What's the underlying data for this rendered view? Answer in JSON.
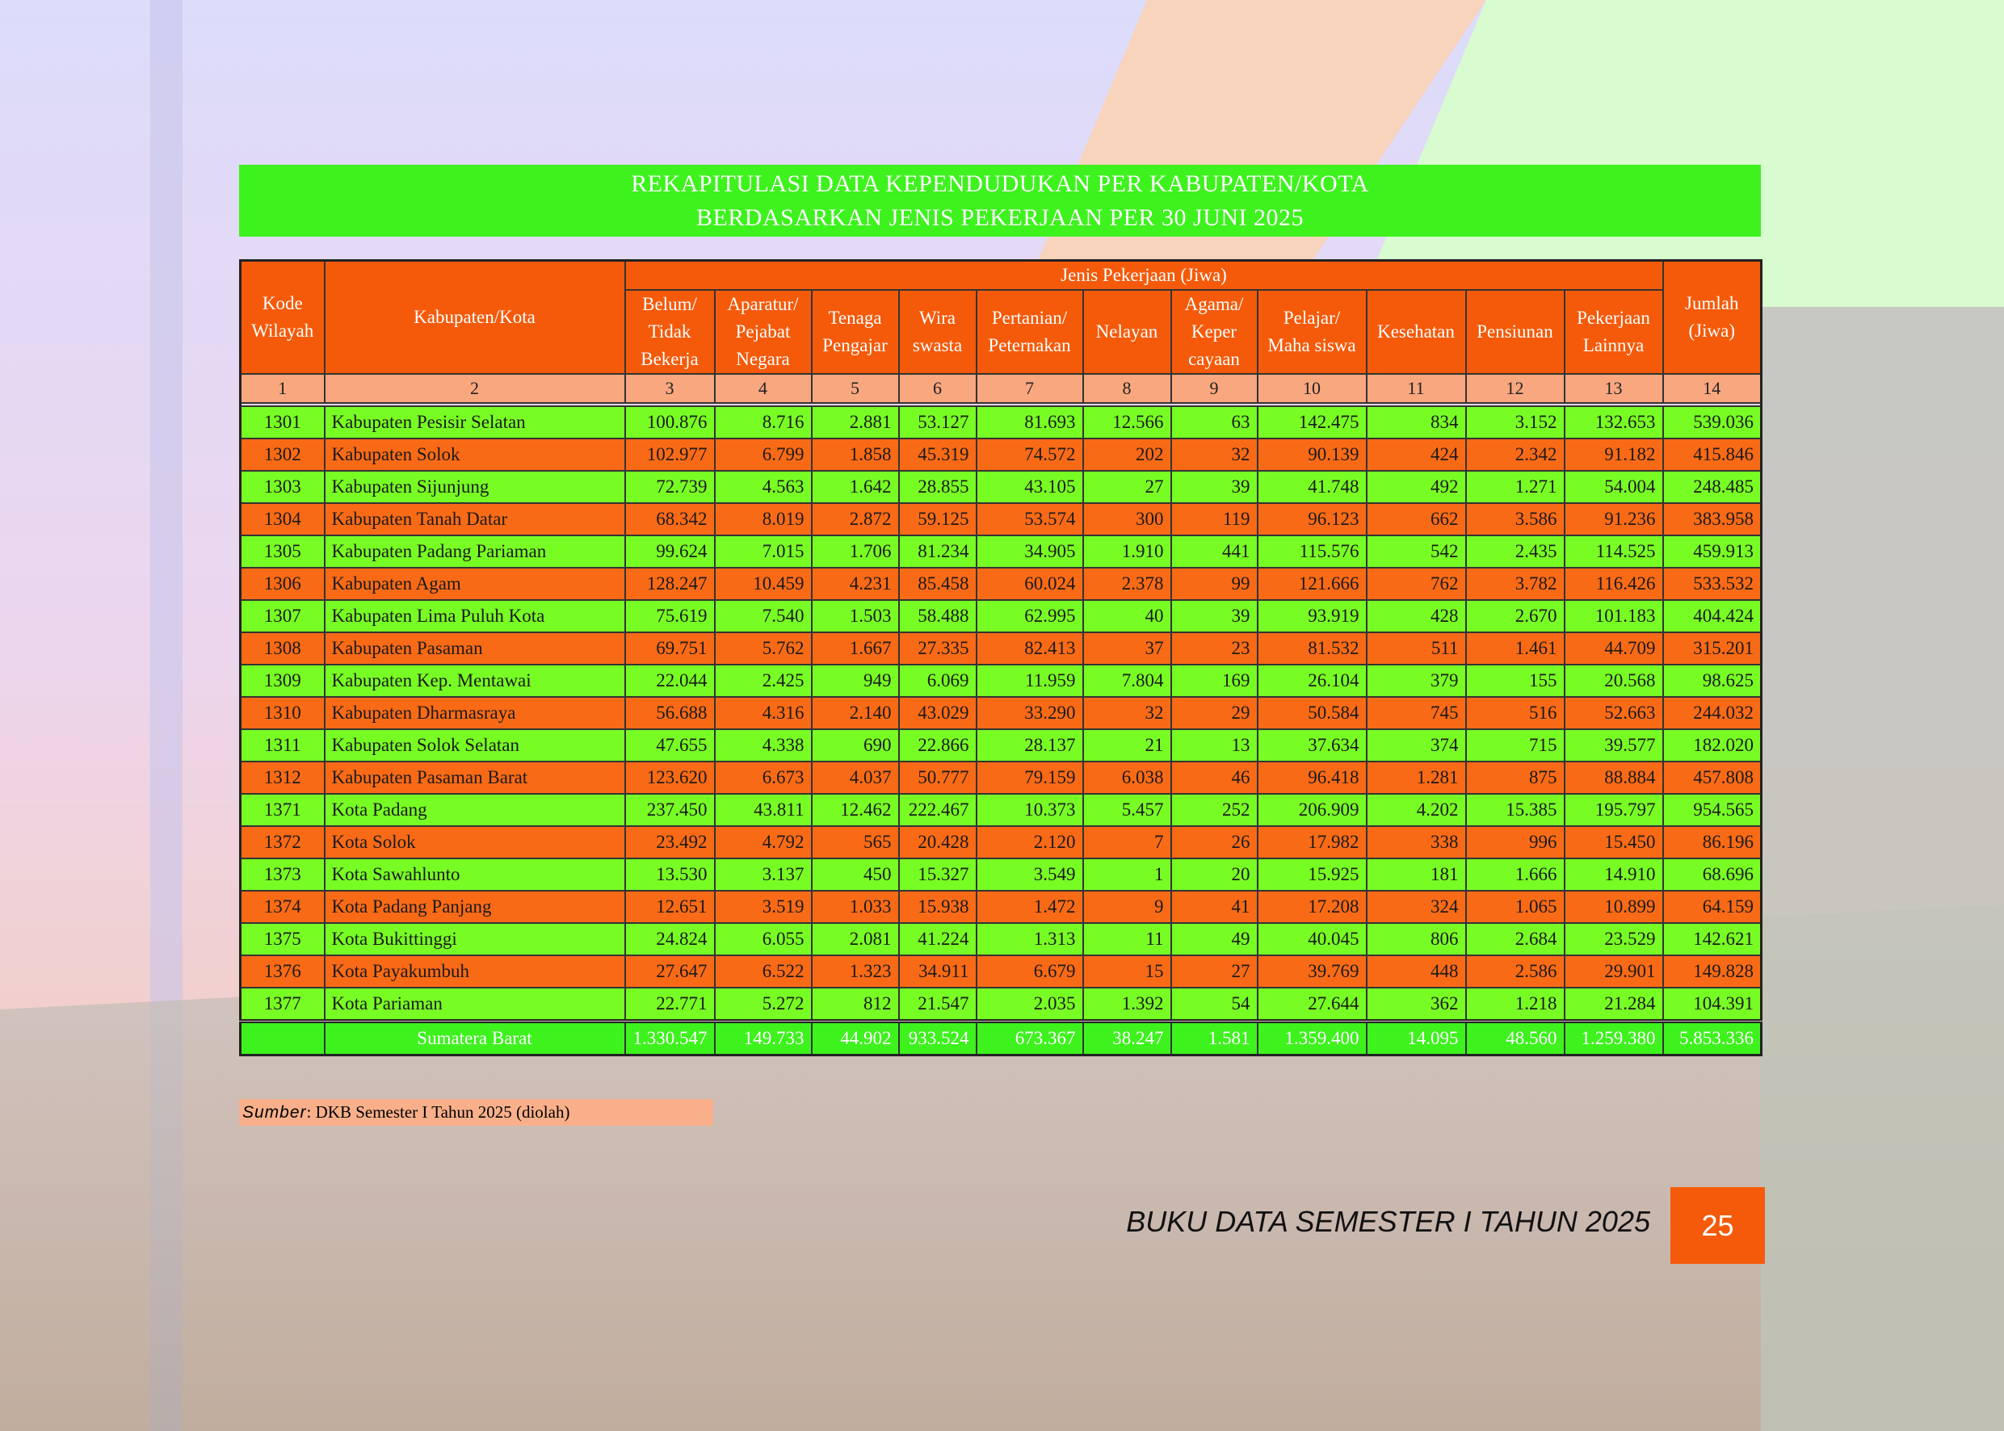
{
  "header": {
    "title": [
      "REKAPITULASI DATA KEPENDUDUKAN  PER KABUPATEN/KOTA",
      "BERDASARKAN JENIS PEKERJAAN PER 30 JUNI 2025"
    ]
  },
  "table": {
    "group_header": "Jenis Pekerjaan (Jiwa)",
    "columns": [
      [
        "Kode",
        "Wilayah"
      ],
      [
        "Kabupaten/Kota"
      ],
      [
        "Belum/",
        "Tidak",
        "Bekerja"
      ],
      [
        "Aparatur/",
        "Pejabat",
        "Negara"
      ],
      [
        "Tenaga",
        "Pengajar"
      ],
      [
        "Wira",
        "swasta"
      ],
      [
        "Pertanian/",
        "Peternakan"
      ],
      [
        "Nelayan"
      ],
      [
        "Agama/",
        "Keper",
        "cayaan"
      ],
      [
        "Pelajar/",
        "Maha siswa"
      ],
      [
        "Kesehatan"
      ],
      [
        "Pensiunan"
      ],
      [
        "Pekerjaan",
        "Lainnya"
      ],
      [
        "Jumlah",
        "(Jiwa)"
      ]
    ],
    "column_numbers": [
      "1",
      "2",
      "3",
      "4",
      "5",
      "6",
      "7",
      "8",
      "9",
      "10",
      "11",
      "12",
      "13",
      "14"
    ],
    "rows": [
      [
        "1301",
        "Kabupaten Pesisir Selatan",
        "100.876",
        "8.716",
        "2.881",
        "53.127",
        "81.693",
        "12.566",
        "63",
        "142.475",
        "834",
        "3.152",
        "132.653",
        "539.036"
      ],
      [
        "1302",
        "Kabupaten Solok",
        "102.977",
        "6.799",
        "1.858",
        "45.319",
        "74.572",
        "202",
        "32",
        "90.139",
        "424",
        "2.342",
        "91.182",
        "415.846"
      ],
      [
        "1303",
        "Kabupaten Sijunjung",
        "72.739",
        "4.563",
        "1.642",
        "28.855",
        "43.105",
        "27",
        "39",
        "41.748",
        "492",
        "1.271",
        "54.004",
        "248.485"
      ],
      [
        "1304",
        "Kabupaten Tanah Datar",
        "68.342",
        "8.019",
        "2.872",
        "59.125",
        "53.574",
        "300",
        "119",
        "96.123",
        "662",
        "3.586",
        "91.236",
        "383.958"
      ],
      [
        "1305",
        "Kabupaten Padang Pariaman",
        "99.624",
        "7.015",
        "1.706",
        "81.234",
        "34.905",
        "1.910",
        "441",
        "115.576",
        "542",
        "2.435",
        "114.525",
        "459.913"
      ],
      [
        "1306",
        "Kabupaten Agam",
        "128.247",
        "10.459",
        "4.231",
        "85.458",
        "60.024",
        "2.378",
        "99",
        "121.666",
        "762",
        "3.782",
        "116.426",
        "533.532"
      ],
      [
        "1307",
        "Kabupaten Lima Puluh Kota",
        "75.619",
        "7.540",
        "1.503",
        "58.488",
        "62.995",
        "40",
        "39",
        "93.919",
        "428",
        "2.670",
        "101.183",
        "404.424"
      ],
      [
        "1308",
        "Kabupaten Pasaman",
        "69.751",
        "5.762",
        "1.667",
        "27.335",
        "82.413",
        "37",
        "23",
        "81.532",
        "511",
        "1.461",
        "44.709",
        "315.201"
      ],
      [
        "1309",
        "Kabupaten Kep. Mentawai",
        "22.044",
        "2.425",
        "949",
        "6.069",
        "11.959",
        "7.804",
        "169",
        "26.104",
        "379",
        "155",
        "20.568",
        "98.625"
      ],
      [
        "1310",
        "Kabupaten Dharmasraya",
        "56.688",
        "4.316",
        "2.140",
        "43.029",
        "33.290",
        "32",
        "29",
        "50.584",
        "745",
        "516",
        "52.663",
        "244.032"
      ],
      [
        "1311",
        "Kabupaten Solok Selatan",
        "47.655",
        "4.338",
        "690",
        "22.866",
        "28.137",
        "21",
        "13",
        "37.634",
        "374",
        "715",
        "39.577",
        "182.020"
      ],
      [
        "1312",
        "Kabupaten Pasaman Barat",
        "123.620",
        "6.673",
        "4.037",
        "50.777",
        "79.159",
        "6.038",
        "46",
        "96.418",
        "1.281",
        "875",
        "88.884",
        "457.808"
      ],
      [
        "1371",
        "Kota Padang",
        "237.450",
        "43.811",
        "12.462",
        "222.467",
        "10.373",
        "5.457",
        "252",
        "206.909",
        "4.202",
        "15.385",
        "195.797",
        "954.565"
      ],
      [
        "1372",
        "Kota Solok",
        "23.492",
        "4.792",
        "565",
        "20.428",
        "2.120",
        "7",
        "26",
        "17.982",
        "338",
        "996",
        "15.450",
        "86.196"
      ],
      [
        "1373",
        "Kota Sawahlunto",
        "13.530",
        "3.137",
        "450",
        "15.327",
        "3.549",
        "1",
        "20",
        "15.925",
        "181",
        "1.666",
        "14.910",
        "68.696"
      ],
      [
        "1374",
        "Kota Padang Panjang",
        "12.651",
        "3.519",
        "1.033",
        "15.938",
        "1.472",
        "9",
        "41",
        "17.208",
        "324",
        "1.065",
        "10.899",
        "64.159"
      ],
      [
        "1375",
        "Kota Bukittinggi",
        "24.824",
        "6.055",
        "2.081",
        "41.224",
        "1.313",
        "11",
        "49",
        "40.045",
        "806",
        "2.684",
        "23.529",
        "142.621"
      ],
      [
        "1376",
        "Kota Payakumbuh",
        "27.647",
        "6.522",
        "1.323",
        "34.911",
        "6.679",
        "15",
        "27",
        "39.769",
        "448",
        "2.586",
        "29.901",
        "149.828"
      ],
      [
        "1377",
        "Kota Pariaman",
        "22.771",
        "5.272",
        "812",
        "21.547",
        "2.035",
        "1.392",
        "54",
        "27.644",
        "362",
        "1.218",
        "21.284",
        "104.391"
      ]
    ],
    "total": {
      "label": "Sumatera Barat",
      "values": [
        "1.330.547",
        "149.733",
        "44.902",
        "933.524",
        "673.367",
        "38.247",
        "1.581",
        "1.359.400",
        "14.095",
        "48.560",
        "1.259.380",
        "5.853.336"
      ]
    }
  },
  "source": {
    "label": "Sumber",
    "text": ": DKB Semester I Tahun 2025 (diolah)"
  },
  "footer": {
    "book_title": "BUKU DATA SEMESTER I TAHUN 2025",
    "page_number": "25"
  }
}
